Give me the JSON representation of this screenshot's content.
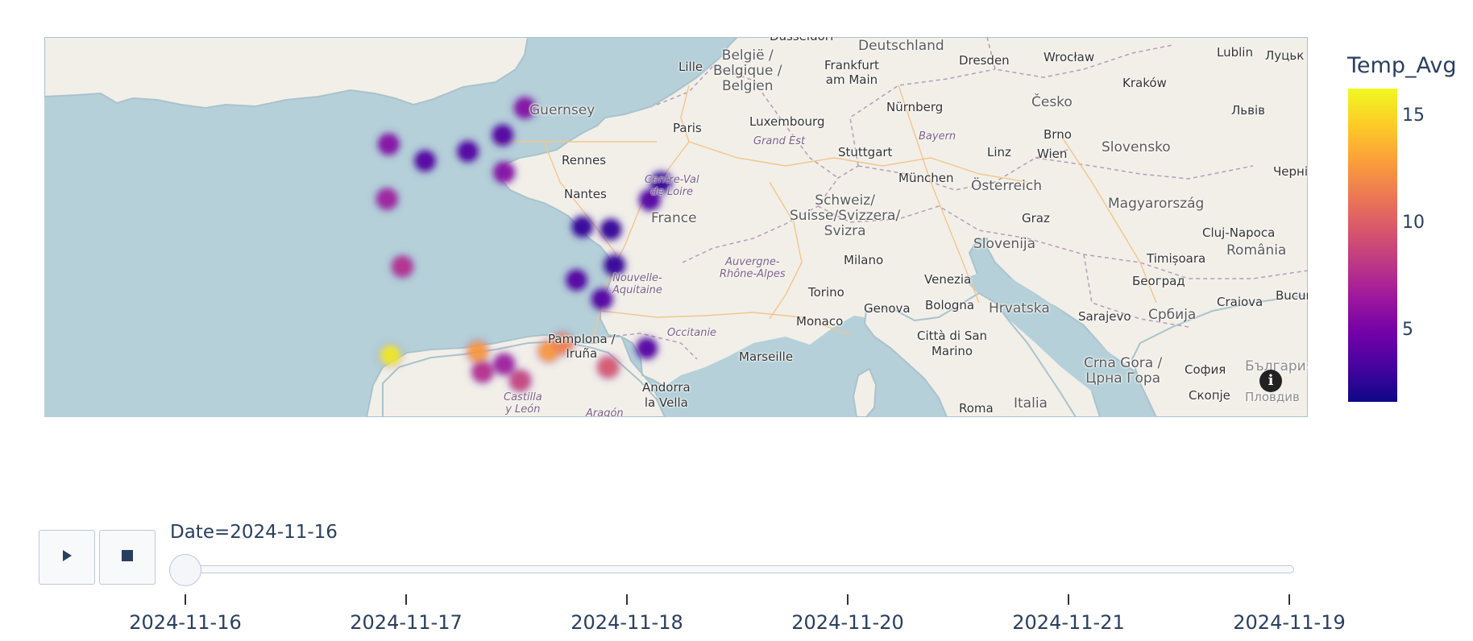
{
  "map": {
    "places": [
      {
        "name": "Düsseldorf"
      },
      {
        "name": "Deutschland"
      },
      {
        "name": "Dresden"
      },
      {
        "name": "Wrocław"
      },
      {
        "name": "Lublin"
      },
      {
        "name": "Луцьк"
      },
      {
        "name": "België /\nBelgique /\nBelgien"
      },
      {
        "name": "Frankfurt\nam Main"
      },
      {
        "name": "Lille"
      },
      {
        "name": "Kraków"
      },
      {
        "name": "Guernsey"
      },
      {
        "name": "Nürnberg"
      },
      {
        "name": "Česko"
      },
      {
        "name": "Paris"
      },
      {
        "name": "Luxembourg"
      },
      {
        "name": "Львів"
      },
      {
        "name": "Brno"
      },
      {
        "name": "Bayern"
      },
      {
        "name": "Grand Est"
      },
      {
        "name": "Stuttgart"
      },
      {
        "name": "Linz"
      },
      {
        "name": "Wien"
      },
      {
        "name": "Slovensko"
      },
      {
        "name": "Rennes"
      },
      {
        "name": "Черні"
      },
      {
        "name": "München"
      },
      {
        "name": "Centre-Val\nde Loire"
      },
      {
        "name": "Österreich"
      },
      {
        "name": "Nantes"
      },
      {
        "name": "Magyarország"
      },
      {
        "name": "Schweiz/\nSuisse/Svizzera/\nSvizra"
      },
      {
        "name": "France"
      },
      {
        "name": "Graz"
      },
      {
        "name": "Cluj-Napoca"
      },
      {
        "name": "Slovenija"
      },
      {
        "name": "România"
      },
      {
        "name": "Auvergne-\nRhône-Alpes"
      },
      {
        "name": "Milano"
      },
      {
        "name": "Timișoara"
      },
      {
        "name": "Nouvelle-\nAquitaine"
      },
      {
        "name": "Venezia"
      },
      {
        "name": "Београд"
      },
      {
        "name": "Torino"
      },
      {
        "name": "Genova"
      },
      {
        "name": "Bologna"
      },
      {
        "name": "Hrvatska"
      },
      {
        "name": "Craiova"
      },
      {
        "name": "Bucur"
      },
      {
        "name": "Monaco"
      },
      {
        "name": "Sarajevo"
      },
      {
        "name": "Србија"
      },
      {
        "name": "Occitanie"
      },
      {
        "name": "Pamplona /\nIruña"
      },
      {
        "name": "Città di San\nMarino"
      },
      {
        "name": "Marseille"
      },
      {
        "name": "Crna Gora /\nЦрна Гора"
      },
      {
        "name": "София"
      },
      {
        "name": "България"
      },
      {
        "name": "Andorra\nla Vella"
      },
      {
        "name": "Скопје"
      },
      {
        "name": "Пловдив"
      },
      {
        "name": "Castilla\ny León"
      },
      {
        "name": "Aragón"
      },
      {
        "name": "Roma"
      },
      {
        "name": "Italia"
      }
    ]
  },
  "heat_points": [
    {
      "id": "lille",
      "lat": 50.63,
      "lon": 3.06,
      "temp": 6
    },
    {
      "id": "amiens",
      "lat": 49.89,
      "lon": 2.3,
      "temp": 4
    },
    {
      "id": "cherbourg",
      "lat": 49.64,
      "lon": -1.62,
      "temp": 6
    },
    {
      "id": "caen",
      "lat": 49.18,
      "lon": -0.37,
      "temp": 4
    },
    {
      "id": "rouen",
      "lat": 49.44,
      "lon": 1.1,
      "temp": 4
    },
    {
      "id": "paris",
      "lat": 48.86,
      "lon": 2.35,
      "temp": 6
    },
    {
      "id": "rennes",
      "lat": 48.11,
      "lon": -1.68,
      "temp": 7
    },
    {
      "id": "strasbourg",
      "lat": 48.58,
      "lon": 7.75,
      "temp": 3
    },
    {
      "id": "colmar",
      "lat": 48.08,
      "lon": 7.36,
      "temp": 4
    },
    {
      "id": "dijon",
      "lat": 47.32,
      "lon": 5.04,
      "temp": 3
    },
    {
      "id": "besancon",
      "lat": 47.24,
      "lon": 6.02,
      "temp": 3
    },
    {
      "id": "la-rochelle",
      "lat": 46.16,
      "lon": -1.15,
      "temp": 8
    },
    {
      "id": "lyon",
      "lat": 45.76,
      "lon": 4.84,
      "temp": 4
    },
    {
      "id": "geneva",
      "lat": 46.2,
      "lon": 6.15,
      "temp": 3
    },
    {
      "id": "grenoble",
      "lat": 45.19,
      "lon": 5.72,
      "temp": 4
    },
    {
      "id": "biarritz",
      "lat": 43.48,
      "lon": -1.56,
      "temp": 16
    },
    {
      "id": "toulouse",
      "lat": 43.6,
      "lon": 1.44,
      "temp": 13
    },
    {
      "id": "carcassonne",
      "lat": 43.21,
      "lon": 2.35,
      "temp": 7
    },
    {
      "id": "foix",
      "lat": 42.97,
      "lon": 1.61,
      "temp": 8
    },
    {
      "id": "perpignan",
      "lat": 42.7,
      "lon": 2.9,
      "temp": 9
    },
    {
      "id": "montpellier",
      "lat": 43.61,
      "lon": 3.88,
      "temp": 13
    },
    {
      "id": "nimes",
      "lat": 43.84,
      "lon": 4.36,
      "temp": 12
    },
    {
      "id": "nice",
      "lat": 43.7,
      "lon": 7.26,
      "temp": 4
    },
    {
      "id": "toulon",
      "lat": 43.12,
      "lon": 5.93,
      "temp": 10
    }
  ],
  "colorbar": {
    "title": "Temp_Avg",
    "ticks": [
      "15",
      "10",
      "5"
    ],
    "colors": [
      "#0d0887",
      "#46039f",
      "#7201a8",
      "#9c179e",
      "#bd3786",
      "#d8576b",
      "#ed7953",
      "#fb9f3a",
      "#fdca26",
      "#f0f921"
    ]
  },
  "slider": {
    "current_label": "Date=2024-11-16",
    "steps": [
      "2024-11-16",
      "2024-11-17",
      "2024-11-18",
      "2024-11-20",
      "2024-11-21",
      "2024-11-19"
    ],
    "active_index": 0
  },
  "controls": {
    "play_icon": "play-icon",
    "stop_icon": "stop-icon"
  },
  "info": {
    "icon": "info-icon",
    "glyph": "i"
  }
}
